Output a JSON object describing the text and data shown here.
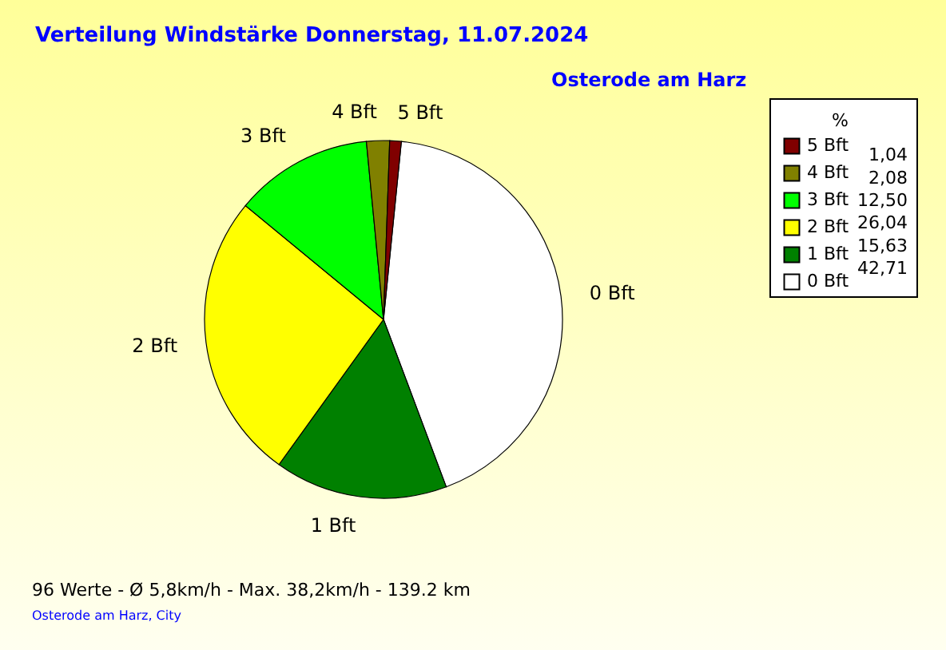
{
  "chart_data": {
    "type": "pie",
    "title": "Verteilung Windstärke  Donnerstag, 11.07.2024",
    "subtitle": "Osterode am Harz",
    "legend_title": "%",
    "legend": "top right",
    "categories": [
      "0 Bft",
      "1 Bft",
      "2 Bft",
      "3 Bft",
      "4 Bft",
      "5 Bft"
    ],
    "values": [
      42.71,
      15.63,
      26.04,
      12.5,
      2.08,
      1.04
    ],
    "value_labels": [
      "42,71",
      "15,63",
      "26,04",
      "12,50",
      "2,08",
      "1,04"
    ],
    "colors": [
      "#ffffff",
      "#008000",
      "#ffff00",
      "#00ff00",
      "#808000",
      "#800000"
    ],
    "annotations": [
      "96 Werte   -   Ø 5,8km/h  -  Max. 38,2km/h   -   139.2 km",
      "Osterode am Harz, City"
    ]
  }
}
